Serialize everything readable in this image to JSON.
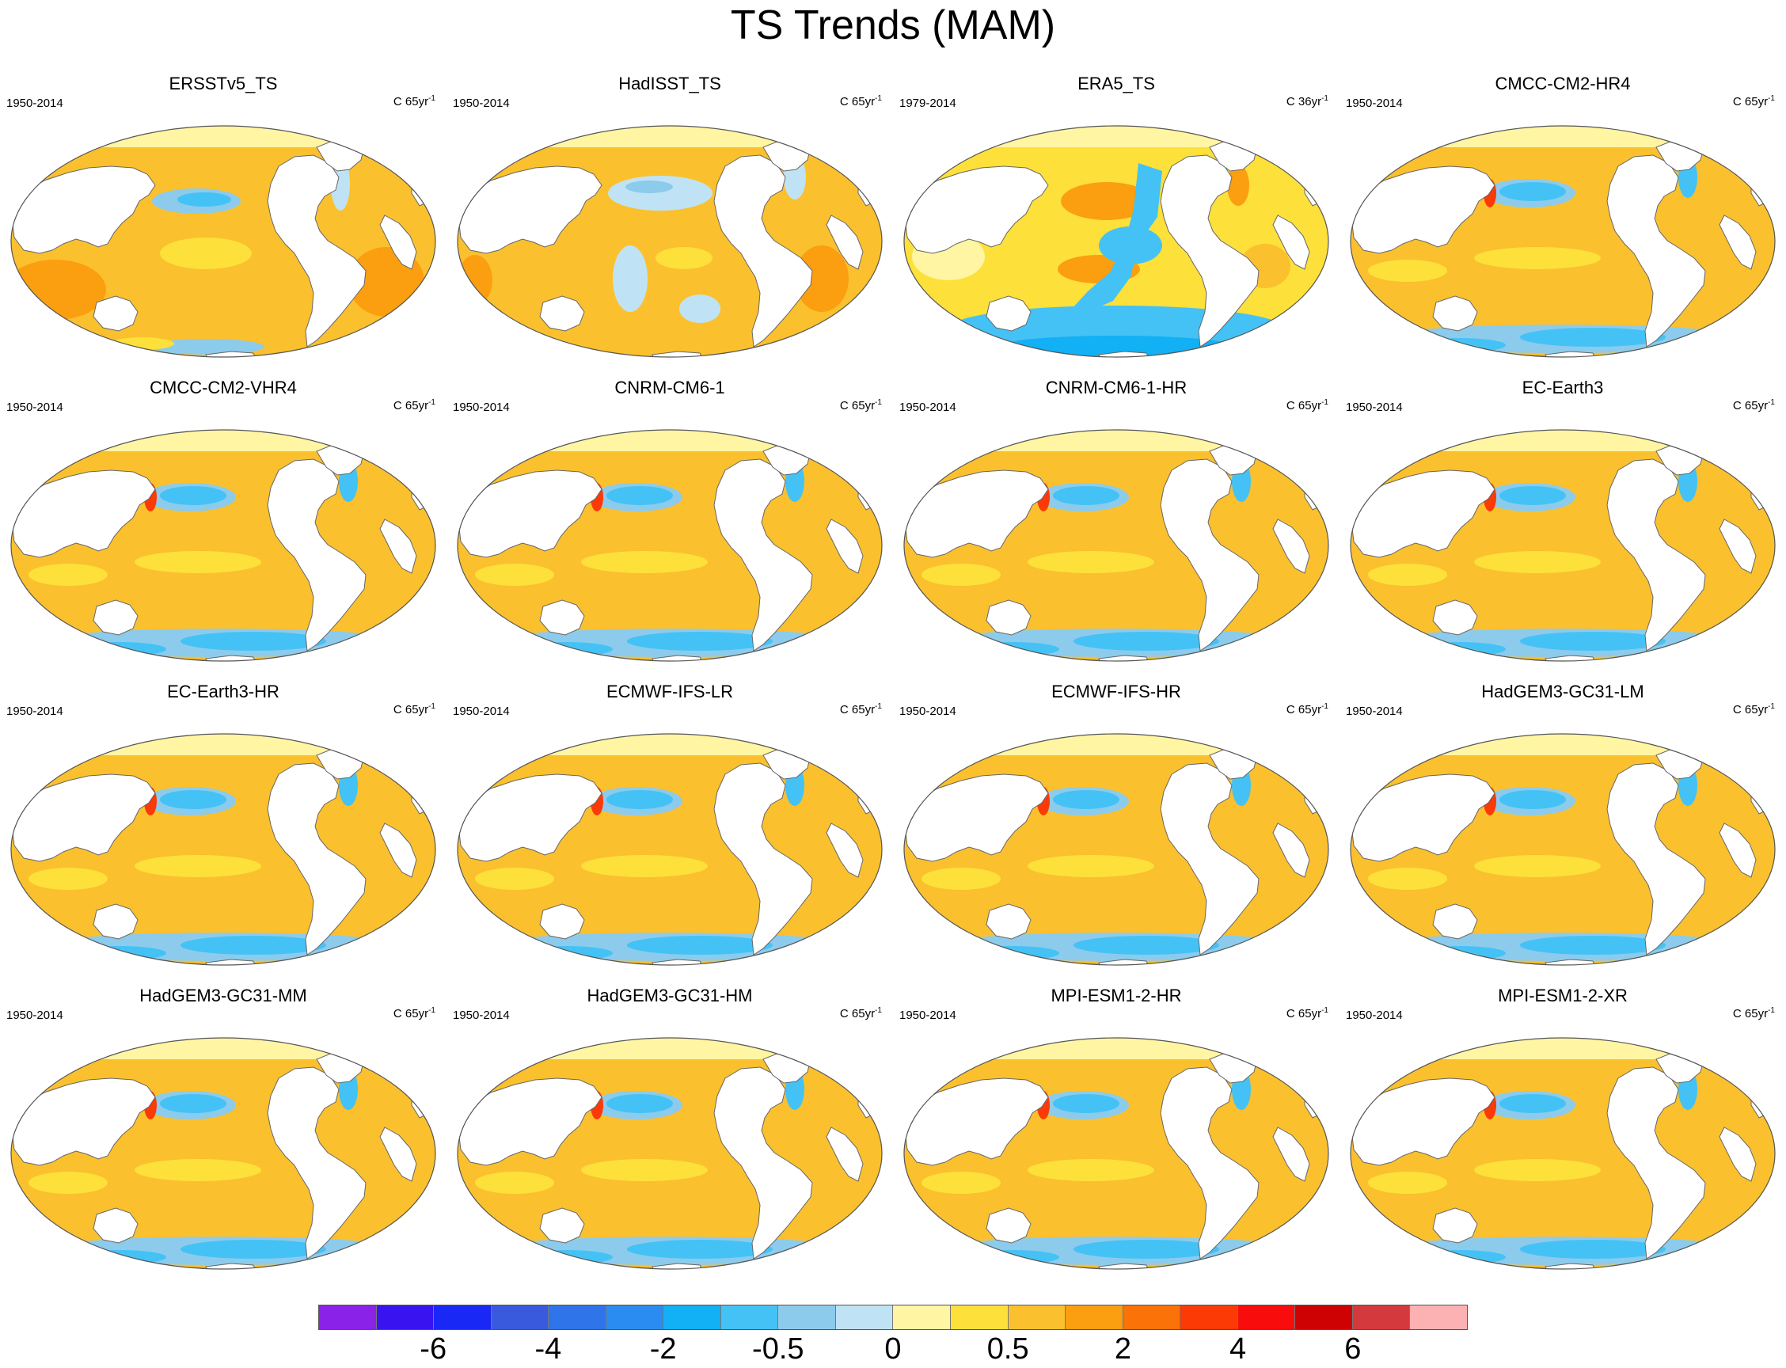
{
  "title": "TS Trends (MAM)",
  "panels": [
    {
      "name": "ERSSTv5_TS",
      "period": "1950-2014",
      "units_base": "C 65yr",
      "units_exp": "-1",
      "style": "obs-smooth"
    },
    {
      "name": "HadISST_TS",
      "period": "1950-2014",
      "units_base": "C 65yr",
      "units_exp": "-1",
      "style": "obs-patchy"
    },
    {
      "name": "ERA5_TS",
      "period": "1979-2014",
      "units_base": "C 36yr",
      "units_exp": "-1",
      "style": "reanalysis"
    },
    {
      "name": "CMCC-CM2-HR4",
      "period": "1950-2014",
      "units_base": "C 65yr",
      "units_exp": "-1",
      "style": "model"
    },
    {
      "name": "CMCC-CM2-VHR4",
      "period": "1950-2014",
      "units_base": "C 65yr",
      "units_exp": "-1",
      "style": "model"
    },
    {
      "name": "CNRM-CM6-1",
      "period": "1950-2014",
      "units_base": "C 65yr",
      "units_exp": "-1",
      "style": "model"
    },
    {
      "name": "CNRM-CM6-1-HR",
      "period": "1950-2014",
      "units_base": "C 65yr",
      "units_exp": "-1",
      "style": "model"
    },
    {
      "name": "EC-Earth3",
      "period": "1950-2014",
      "units_base": "C 65yr",
      "units_exp": "-1",
      "style": "model"
    },
    {
      "name": "EC-Earth3-HR",
      "period": "1950-2014",
      "units_base": "C 65yr",
      "units_exp": "-1",
      "style": "model"
    },
    {
      "name": "ECMWF-IFS-LR",
      "period": "1950-2014",
      "units_base": "C 65yr",
      "units_exp": "-1",
      "style": "model"
    },
    {
      "name": "ECMWF-IFS-HR",
      "period": "1950-2014",
      "units_base": "C 65yr",
      "units_exp": "-1",
      "style": "model"
    },
    {
      "name": "HadGEM3-GC31-LM",
      "period": "1950-2014",
      "units_base": "C 65yr",
      "units_exp": "-1",
      "style": "model"
    },
    {
      "name": "HadGEM3-GC31-MM",
      "period": "1950-2014",
      "units_base": "C 65yr",
      "units_exp": "-1",
      "style": "model"
    },
    {
      "name": "HadGEM3-GC31-HM",
      "period": "1950-2014",
      "units_base": "C 65yr",
      "units_exp": "-1",
      "style": "model"
    },
    {
      "name": "MPI-ESM1-2-HR",
      "period": "1950-2014",
      "units_base": "C 65yr",
      "units_exp": "-1",
      "style": "model"
    },
    {
      "name": "MPI-ESM1-2-XR",
      "period": "1950-2014",
      "units_base": "C 65yr",
      "units_exp": "-1",
      "style": "model"
    }
  ],
  "colorbar": {
    "colors": [
      "#8a22e8",
      "#3a14f0",
      "#1a28f5",
      "#3a5ade",
      "#2f74e8",
      "#2a8cf0",
      "#12b0f5",
      "#44c2f5",
      "#8ccbec",
      "#bfe3f5",
      "#fff5a2",
      "#fde03a",
      "#fbc02e",
      "#fb9e10",
      "#fb7208",
      "#fb3a06",
      "#f80c0c",
      "#ce0202",
      "#d4393e",
      "#fcb2b2"
    ],
    "labels": [
      {
        "text": "-6",
        "boundary": 2
      },
      {
        "text": "-4",
        "boundary": 4
      },
      {
        "text": "-2",
        "boundary": 6
      },
      {
        "text": "-0.5",
        "boundary": 8
      },
      {
        "text": "0",
        "boundary": 10
      },
      {
        "text": "0.5",
        "boundary": 12
      },
      {
        "text": "2",
        "boundary": 14
      },
      {
        "text": "4",
        "boundary": 16
      },
      {
        "text": "6",
        "boundary": 18
      }
    ]
  },
  "palette": {
    "warm_light": "#fde03a",
    "warm_main": "#fbc02e",
    "warm_strong": "#fb9e10",
    "warm_hot": "#fb7208",
    "red": "#fb3a06",
    "arctic_pale": "#fff5a2",
    "cool_pale": "#bfe3f5",
    "cool_light": "#8ccbec",
    "cool_main": "#44c2f5",
    "cool_strong": "#12b0f5",
    "land": "#ffffff",
    "coast": "#666666"
  }
}
